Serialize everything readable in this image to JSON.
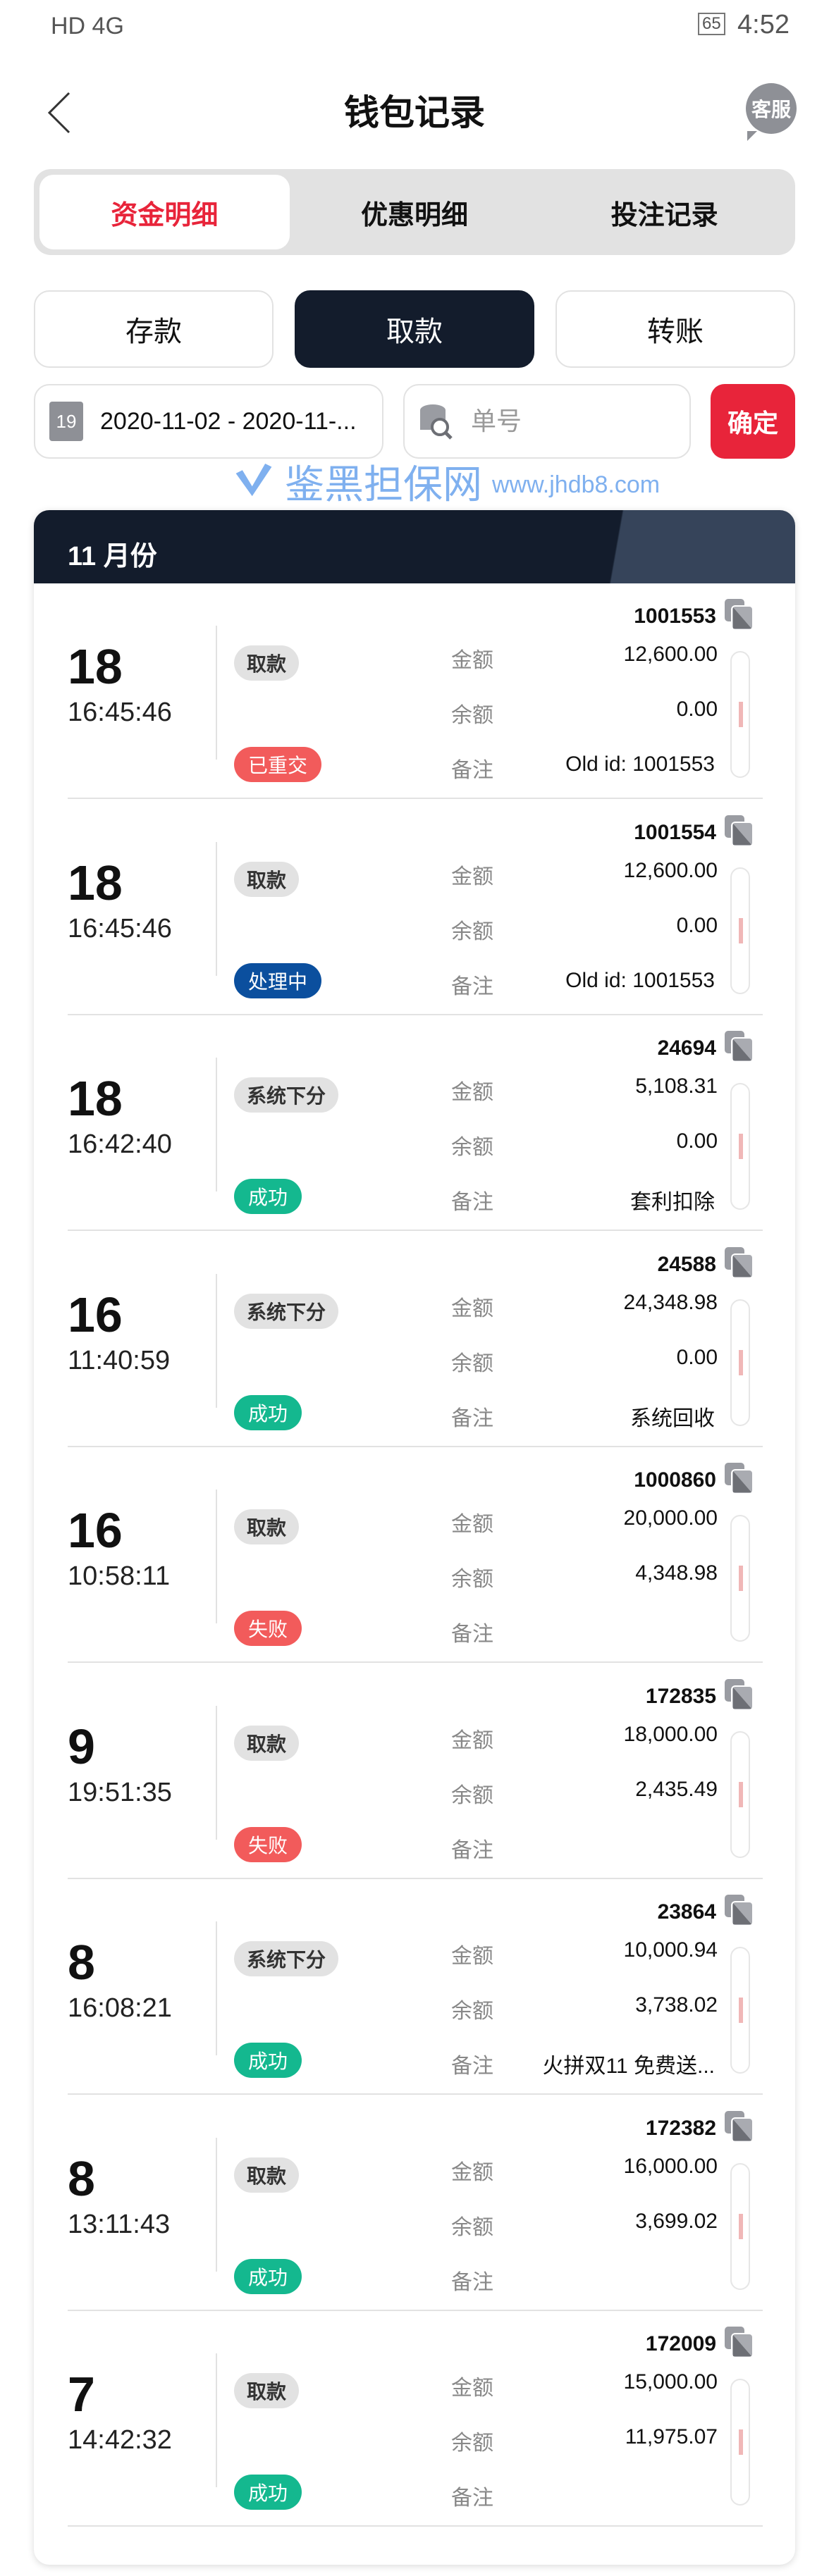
{
  "status_bar": {
    "left": "HD 4G",
    "battery": "65",
    "time": "4:52"
  },
  "header": {
    "title": "钱包记录",
    "service": "客服"
  },
  "tabs": [
    {
      "label": "资金明细",
      "active": true
    },
    {
      "label": "优惠明细"
    },
    {
      "label": "投注记录"
    }
  ],
  "types": [
    {
      "label": "存款"
    },
    {
      "label": "取款",
      "active": true
    },
    {
      "label": "转账"
    }
  ],
  "filters": {
    "calendar_day": "19",
    "date_range": "2020-11-02 - 2020-11-...",
    "order_placeholder": "单号",
    "confirm": "确定"
  },
  "month": "11 月份",
  "labels": {
    "amount": "金额",
    "balance": "余额",
    "remark": "备注"
  },
  "colors": {
    "accent": "#e8243a",
    "dark": "#131c2c",
    "failed": "#f25b5b",
    "processing": "#0b4f9e",
    "success": "#14b88f"
  },
  "watermark": {
    "name": "鉴黑担保网",
    "url": "www.jhdb8.com"
  },
  "records": [
    {
      "day": "18",
      "time": "16:45:46",
      "type": "取款",
      "status": "已重交",
      "status_kind": "failed",
      "order": "1001553",
      "amount": "12,600.00",
      "balance": "0.00",
      "remark": "Old id: 1001553"
    },
    {
      "day": "18",
      "time": "16:45:46",
      "type": "取款",
      "status": "处理中",
      "status_kind": "processing",
      "order": "1001554",
      "amount": "12,600.00",
      "balance": "0.00",
      "remark": "Old id: 1001553"
    },
    {
      "day": "18",
      "time": "16:42:40",
      "type": "系统下分",
      "status": "成功",
      "status_kind": "success",
      "order": "24694",
      "amount": "5,108.31",
      "balance": "0.00",
      "remark": "套利扣除"
    },
    {
      "day": "16",
      "time": "11:40:59",
      "type": "系统下分",
      "status": "成功",
      "status_kind": "success",
      "order": "24588",
      "amount": "24,348.98",
      "balance": "0.00",
      "remark": "系统回收"
    },
    {
      "day": "16",
      "time": "10:58:11",
      "type": "取款",
      "status": "失败",
      "status_kind": "failed",
      "order": "1000860",
      "amount": "20,000.00",
      "balance": "4,348.98",
      "remark": ""
    },
    {
      "day": "9",
      "time": "19:51:35",
      "type": "取款",
      "status": "失败",
      "status_kind": "failed",
      "order": "172835",
      "amount": "18,000.00",
      "balance": "2,435.49",
      "remark": ""
    },
    {
      "day": "8",
      "time": "16:08:21",
      "type": "系统下分",
      "status": "成功",
      "status_kind": "success",
      "order": "23864",
      "amount": "10,000.94",
      "balance": "3,738.02",
      "remark": "火拼双11 免费送..."
    },
    {
      "day": "8",
      "time": "13:11:43",
      "type": "取款",
      "status": "成功",
      "status_kind": "success",
      "order": "172382",
      "amount": "16,000.00",
      "balance": "3,699.02",
      "remark": ""
    },
    {
      "day": "7",
      "time": "14:42:32",
      "type": "取款",
      "status": "成功",
      "status_kind": "success",
      "order": "172009",
      "amount": "15,000.00",
      "balance": "11,975.07",
      "remark": ""
    }
  ]
}
